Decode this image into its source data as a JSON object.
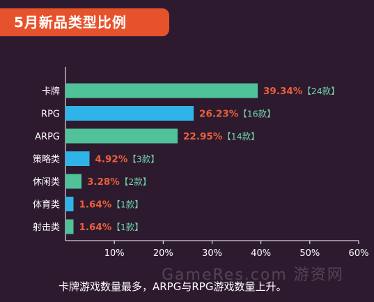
{
  "header": {
    "title": "5月新品类型比例"
  },
  "caption": "卡牌游戏数量最多，ARPG与RPG游戏数量上升。",
  "watermark": "GameRes.com 游资网",
  "colors": {
    "background": "#2e1a2f",
    "header": "#e6522c",
    "percent_text": "#e8603a",
    "count_text": "#6fd3ab",
    "axis": "#ffffff"
  },
  "chart_data": {
    "type": "bar",
    "orientation": "horizontal",
    "categories": [
      "卡牌",
      "RPG",
      "ARPG",
      "策略类",
      "休闲类",
      "体育类",
      "射击类"
    ],
    "values": [
      39.34,
      26.23,
      22.95,
      4.92,
      3.28,
      1.64,
      1.64
    ],
    "value_labels": [
      "39.34%",
      "26.23%",
      "22.95%",
      "4.92%",
      "3.28%",
      "1.64%",
      "1.64%"
    ],
    "count_labels": [
      "【24款】",
      "【16款】",
      "【14款】",
      "【3款】",
      "【2款】",
      "【1款】",
      "【1款】"
    ],
    "bar_colors": [
      "#4fc29a",
      "#2fb3e8",
      "#4fc29a",
      "#2fb3e8",
      "#4fc29a",
      "#2fb3e8",
      "#4fc29a"
    ],
    "xlim": [
      0,
      60
    ],
    "xticks": [
      "10%",
      "20%",
      "30%",
      "40%",
      "50%",
      "60%"
    ],
    "xtick_values": [
      10,
      20,
      30,
      40,
      50,
      60
    ],
    "grid": false
  }
}
